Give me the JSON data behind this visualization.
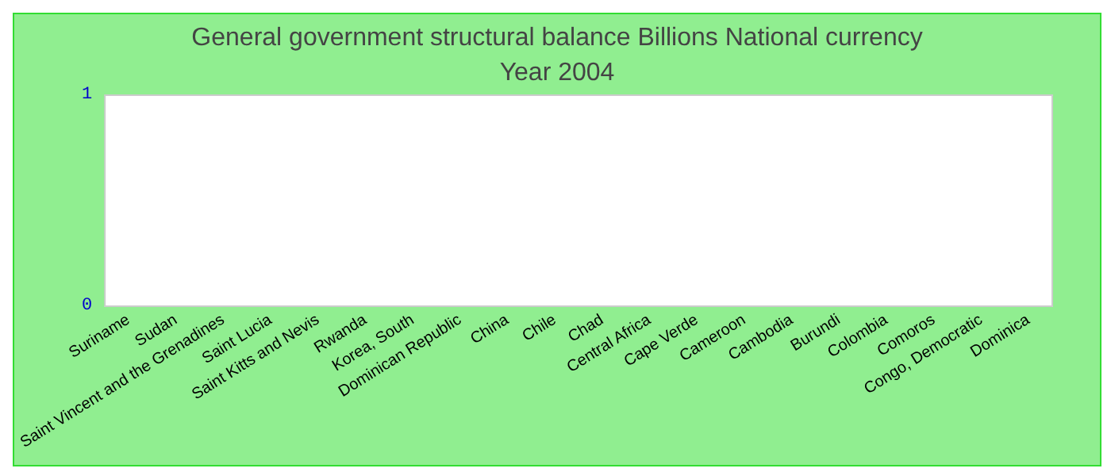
{
  "chart_data": {
    "type": "bar",
    "title": "General government structural balance Billions National currency",
    "subtitle": "Year 2004",
    "categories": [
      "Suriname",
      "Sudan",
      "Saint Vincent and the Grenadines",
      "Saint Lucia",
      "Saint Kitts and Nevis",
      "Rwanda",
      "Korea, South",
      "Dominican Republic",
      "China",
      "Chile",
      "Chad",
      "Central Africa",
      "Cape Verde",
      "Cameroon",
      "Cambodia",
      "Burundi",
      "Colombia",
      "Comoros",
      "Congo, Democratic",
      "Dominica"
    ],
    "values": [
      0,
      0,
      0,
      0,
      0,
      0,
      0,
      0,
      0,
      0,
      0,
      0,
      0,
      0,
      0,
      0,
      0,
      0,
      0,
      0
    ],
    "ylim": [
      0,
      1
    ],
    "yticks": [
      0,
      1
    ],
    "grid": false
  }
}
